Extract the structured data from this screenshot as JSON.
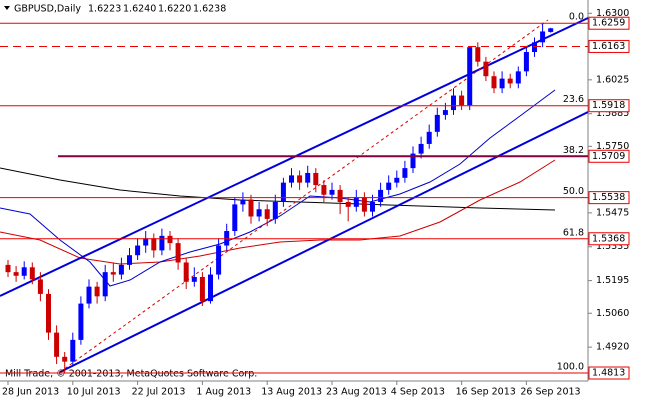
{
  "chart_data": {
    "type": "candlestick",
    "title": "GBPUSD,Daily",
    "header_ohlc": [
      "1.6223",
      "1.6240",
      "1.6220",
      "1.6238"
    ],
    "footer": "Mill Trade, © 2001-2013, MetaQuotes Software Corp.",
    "categories": [
      "28 Jun 2013",
      null,
      null,
      null,
      null,
      null,
      null,
      null,
      "10 Jul 2013",
      null,
      null,
      null,
      null,
      null,
      null,
      null,
      "22 Jul 2013",
      null,
      null,
      null,
      null,
      null,
      null,
      null,
      "1 Aug 2013",
      null,
      null,
      null,
      null,
      null,
      null,
      null,
      "13 Aug 2013",
      null,
      null,
      null,
      null,
      null,
      null,
      null,
      "23 Aug 2013",
      null,
      null,
      null,
      null,
      null,
      null,
      null,
      "4 Sep 2013",
      null,
      null,
      null,
      null,
      null,
      null,
      null,
      "16 Sep 2013",
      null,
      null,
      null,
      null,
      null,
      null,
      null,
      "26 Sep 2013",
      null,
      null,
      null
    ],
    "open": [
      1.526,
      1.523,
      1.5215,
      1.525,
      1.52,
      1.514,
      1.498,
      1.488,
      1.486,
      1.495,
      1.51,
      1.517,
      1.513,
      1.523,
      1.522,
      1.526,
      1.53,
      1.534,
      1.537,
      1.532,
      1.538,
      1.535,
      1.527,
      1.519,
      1.521,
      1.511,
      1.522,
      1.534,
      1.54,
      1.551,
      1.553,
      1.546,
      1.549,
      1.545,
      1.552,
      1.56,
      1.563,
      1.56,
      1.564,
      1.559,
      1.555,
      1.557,
      1.552,
      1.55,
      1.554,
      1.548,
      1.552,
      1.557,
      1.56,
      1.562,
      1.566,
      1.572,
      1.576,
      1.581,
      1.588,
      1.59,
      1.596,
      1.592,
      1.616,
      1.61,
      1.604,
      1.599,
      1.603,
      1.601,
      1.606,
      1.614,
      1.618,
      1.6223
    ],
    "high": [
      1.528,
      1.5255,
      1.5275,
      1.527,
      1.523,
      1.516,
      1.501,
      1.49,
      1.498,
      1.513,
      1.52,
      1.519,
      1.526,
      1.527,
      1.529,
      1.533,
      1.537,
      1.54,
      1.539,
      1.541,
      1.54,
      1.537,
      1.529,
      1.525,
      1.523,
      1.525,
      1.537,
      1.543,
      1.554,
      1.556,
      1.555,
      1.552,
      1.551,
      1.555,
      1.562,
      1.566,
      1.565,
      1.567,
      1.566,
      1.561,
      1.56,
      1.559,
      1.554,
      1.557,
      1.556,
      1.555,
      1.56,
      1.563,
      1.565,
      1.569,
      1.575,
      1.579,
      1.584,
      1.591,
      1.593,
      1.599,
      1.598,
      1.6163,
      1.618,
      1.612,
      1.606,
      1.606,
      1.605,
      1.608,
      1.616,
      1.62,
      1.6259,
      1.624
    ],
    "low": [
      1.521,
      1.519,
      1.52,
      1.518,
      1.511,
      1.495,
      1.485,
      1.4813,
      1.484,
      1.493,
      1.508,
      1.51,
      1.511,
      1.519,
      1.52,
      1.524,
      1.528,
      1.531,
      1.529,
      1.53,
      1.532,
      1.524,
      1.516,
      1.517,
      1.509,
      1.51,
      1.52,
      1.532,
      1.538,
      1.548,
      1.543,
      1.544,
      1.542,
      1.543,
      1.55,
      1.558,
      1.557,
      1.558,
      1.556,
      1.552,
      1.553,
      1.547,
      1.544,
      1.548,
      1.546,
      1.546,
      1.55,
      1.555,
      1.558,
      1.56,
      1.564,
      1.57,
      1.574,
      1.579,
      1.586,
      1.588,
      1.59,
      1.59,
      1.608,
      1.602,
      1.597,
      1.597,
      1.599,
      1.599,
      1.604,
      1.612,
      1.616,
      1.622
    ],
    "close": [
      1.523,
      1.5215,
      1.525,
      1.52,
      1.514,
      1.498,
      1.488,
      1.486,
      1.495,
      1.51,
      1.517,
      1.513,
      1.523,
      1.522,
      1.526,
      1.53,
      1.534,
      1.537,
      1.532,
      1.538,
      1.535,
      1.527,
      1.519,
      1.521,
      1.511,
      1.522,
      1.534,
      1.54,
      1.551,
      1.553,
      1.546,
      1.549,
      1.545,
      1.552,
      1.56,
      1.563,
      1.56,
      1.564,
      1.559,
      1.555,
      1.557,
      1.552,
      1.55,
      1.554,
      1.548,
      1.552,
      1.557,
      1.56,
      1.562,
      1.566,
      1.572,
      1.576,
      1.581,
      1.588,
      1.59,
      1.596,
      1.592,
      1.616,
      1.61,
      1.604,
      1.599,
      1.603,
      1.601,
      1.606,
      1.614,
      1.618,
      1.6225,
      1.6238
    ],
    "up_color": "#0000ff",
    "down_color": "#cc0000",
    "ylim": [
      1.478,
      1.6355
    ],
    "yticks": [
      {
        "value": 1.63,
        "label": "1.6300"
      },
      {
        "value": 1.6025,
        "label": "1.6025"
      },
      {
        "value": 1.5885,
        "label": "1.5885"
      },
      {
        "value": 1.575,
        "label": "1.5750"
      },
      {
        "value": 1.5475,
        "label": "1.5475"
      },
      {
        "value": 1.5335,
        "label": "1.5335"
      },
      {
        "value": 1.5195,
        "label": "1.5195"
      },
      {
        "value": 1.506,
        "label": "1.5060"
      },
      {
        "value": 1.492,
        "label": "1.4920"
      }
    ],
    "levels": [
      {
        "value": 1.6259,
        "fib": "0.0"
      },
      {
        "value": 1.6163
      },
      {
        "value": 1.5918,
        "fib": "23.6"
      },
      {
        "value": 1.5709,
        "fib": "38.2"
      },
      {
        "value": 1.5538,
        "fib": "50.0"
      },
      {
        "value": 1.5368,
        "fib": "61.8"
      },
      {
        "value": 1.4813,
        "fib": "100.0"
      }
    ]
  }
}
